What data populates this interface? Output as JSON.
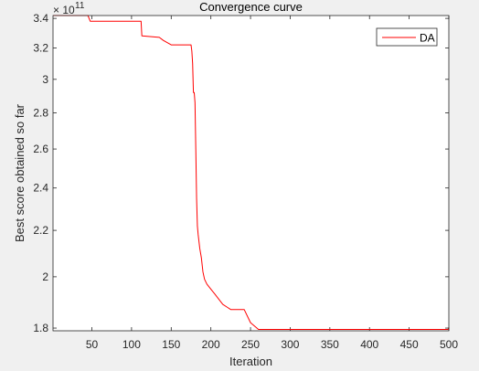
{
  "chart_data": {
    "type": "line",
    "title": "Convergence curve",
    "xlabel": "Iteration",
    "ylabel": "Best score obtained so far",
    "y_exponent_label": "× 10",
    "y_exponent_power": "11",
    "y_scale": "log",
    "xlim": [
      1,
      500
    ],
    "ylim": [
      1.79,
      3.42
    ],
    "xticks": [
      50,
      100,
      150,
      200,
      250,
      300,
      350,
      400,
      450,
      500
    ],
    "xtick_labels": [
      "50",
      "100",
      "150",
      "200",
      "250",
      "300",
      "350",
      "400",
      "450",
      "500"
    ],
    "yticks": [
      1.8,
      2,
      2.2,
      2.4,
      2.6,
      2.8,
      3,
      3.2,
      3.4
    ],
    "ytick_labels": [
      "1.8",
      "2",
      "2.2",
      "2.4",
      "2.6",
      "2.8",
      "3",
      "3.2",
      "3.4"
    ],
    "grid": false,
    "legend_position": "top-right",
    "series": [
      {
        "name": "DA",
        "color": "#ff0000",
        "x": [
          1,
          45,
          48,
          112,
          113,
          135,
          140,
          150,
          175,
          176,
          177,
          178,
          179,
          180,
          181,
          182,
          183,
          184,
          185,
          186,
          188,
          190,
          192,
          195,
          200,
          205,
          210,
          215,
          220,
          225,
          242,
          250,
          260,
          300,
          499,
          500
        ],
        "y": [
          3.42,
          3.42,
          3.38,
          3.38,
          3.28,
          3.27,
          3.25,
          3.22,
          3.22,
          3.18,
          3.1,
          2.92,
          2.92,
          2.86,
          2.6,
          2.35,
          2.22,
          2.18,
          2.15,
          2.12,
          2.08,
          2.02,
          1.99,
          1.97,
          1.95,
          1.93,
          1.91,
          1.89,
          1.88,
          1.87,
          1.87,
          1.82,
          1.795,
          1.795,
          1.795,
          1.8
        ]
      }
    ]
  }
}
